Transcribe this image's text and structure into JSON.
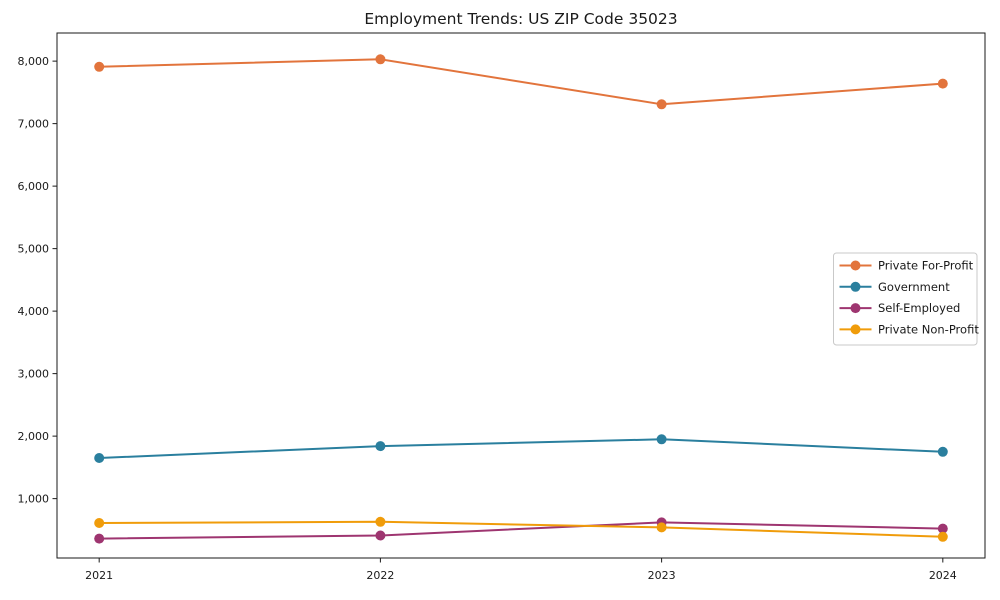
{
  "page": {
    "background_color": "#ffffff",
    "text_color": "#1a1a1a",
    "axis_color": "#1a1a1a",
    "legend_border_color": "#c9c9c9"
  },
  "chart_data": {
    "type": "line",
    "title": "Employment Trends: US ZIP Code 35023",
    "xlabel": "",
    "ylabel": "",
    "x": [
      2021,
      2022,
      2023,
      2024
    ],
    "x_tick_labels": [
      "2021",
      "2022",
      "2023",
      "2024"
    ],
    "series": [
      {
        "name": "Private For-Profit",
        "color": "#E2743C",
        "values": [
          7910,
          8030,
          7310,
          7640
        ]
      },
      {
        "name": "Government",
        "color": "#2A7F9E",
        "values": [
          1650,
          1840,
          1950,
          1750
        ]
      },
      {
        "name": "Self-Employed",
        "color": "#9E3570",
        "values": [
          360,
          410,
          620,
          520
        ]
      },
      {
        "name": "Private Non-Profit",
        "color": "#F09C0A",
        "values": [
          610,
          630,
          540,
          390
        ]
      }
    ],
    "yticks": [
      1000,
      2000,
      3000,
      4000,
      5000,
      6000,
      7000,
      8000
    ],
    "ytick_labels": [
      "1,000",
      "2,000",
      "3,000",
      "4,000",
      "5,000",
      "6,000",
      "7,000",
      "8,000"
    ],
    "ylim": [
      50,
      8450
    ],
    "xlim": [
      2020.85,
      2024.15
    ],
    "grid": false,
    "legend_position": "center-right",
    "marker": "circle",
    "line_width": 2
  }
}
